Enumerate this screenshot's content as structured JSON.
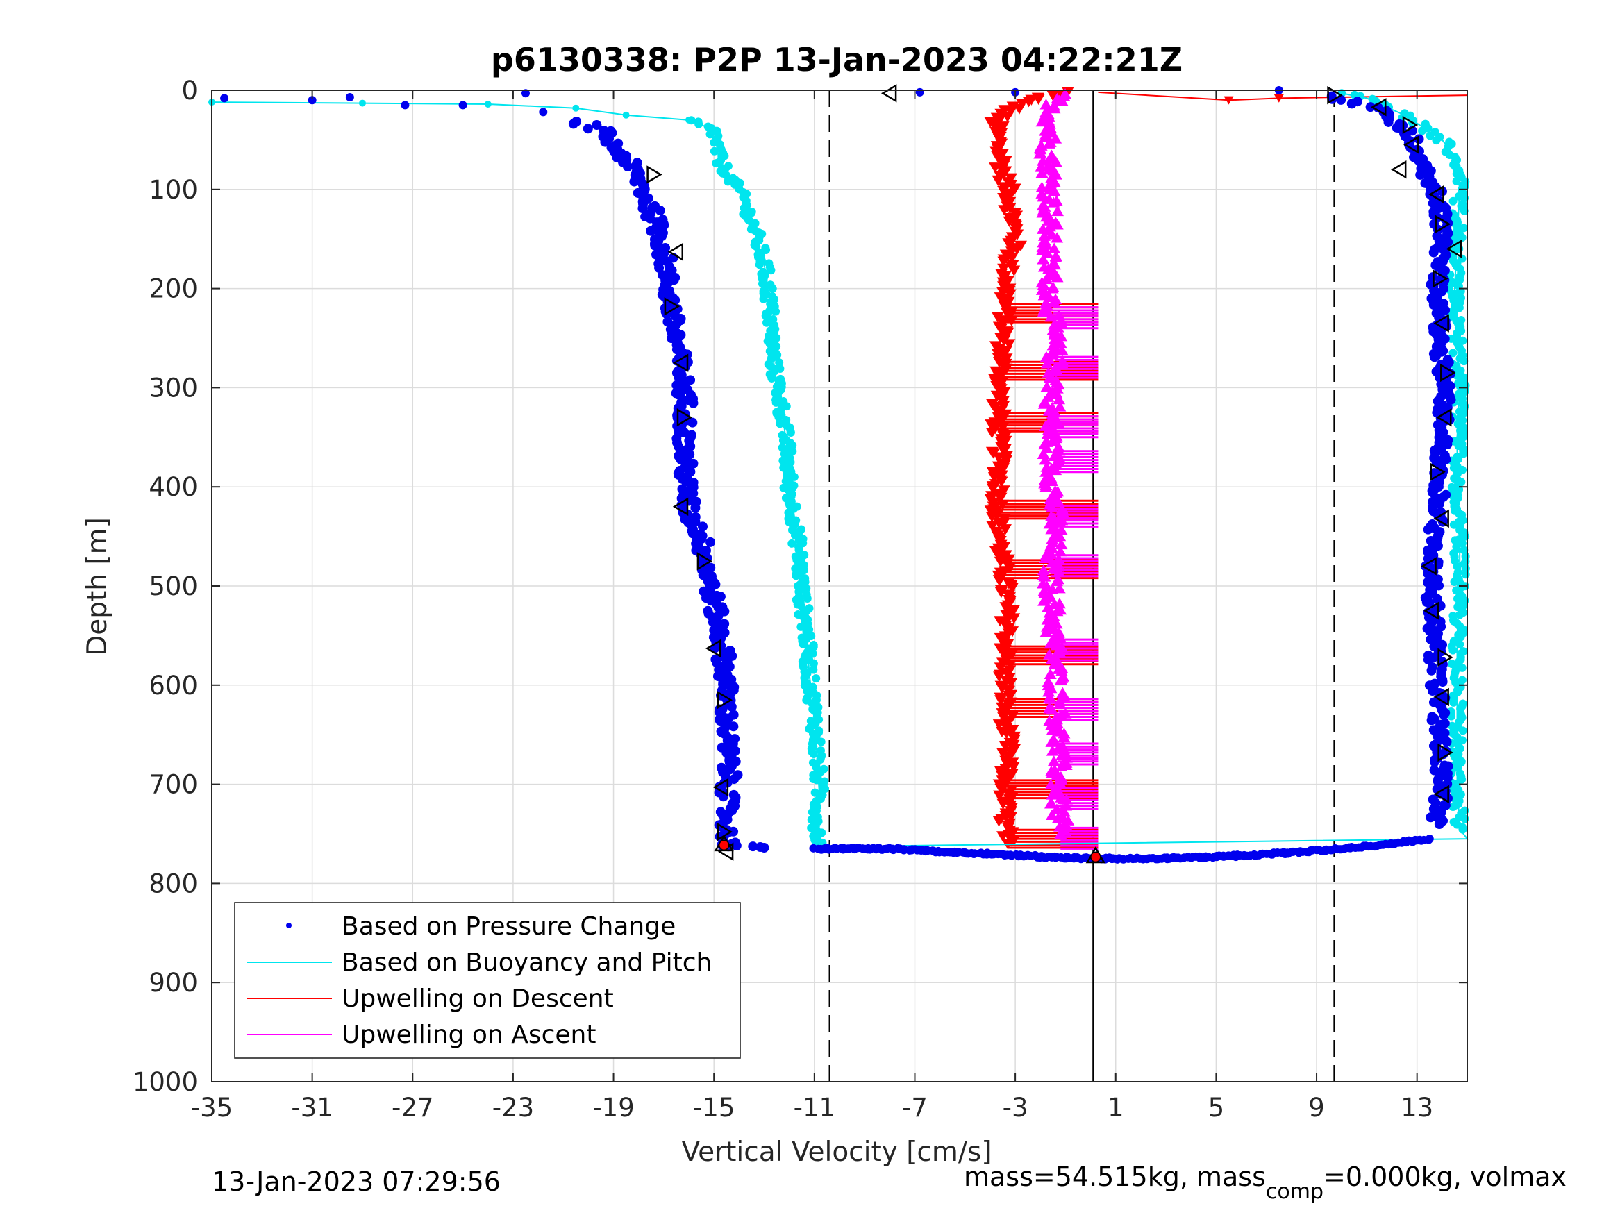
{
  "chart_data": {
    "type": "scatter",
    "title": "p6130338: P2P 13-Jan-2023 04:22:21Z",
    "xlabel": "Vertical Velocity [cm/s]",
    "ylabel": "Depth [m]",
    "xlim": [
      -35,
      15
    ],
    "ylim": [
      1000,
      0
    ],
    "y_reversed": true,
    "grid": true,
    "x_ticks": [
      -35,
      -31,
      -27,
      -23,
      -19,
      -15,
      -11,
      -7,
      -3,
      1,
      5,
      9,
      13
    ],
    "y_ticks": [
      0,
      100,
      200,
      300,
      400,
      500,
      600,
      700,
      800,
      900,
      1000
    ],
    "x_tick_labels": [
      "-35",
      "-31",
      "-27",
      "-23",
      "-19",
      "-15",
      "-11",
      "-7",
      "-3",
      "1",
      "5",
      "9",
      "13"
    ],
    "y_tick_labels": [
      "0",
      "100",
      "200",
      "300",
      "400",
      "500",
      "600",
      "700",
      "800",
      "900",
      "1000"
    ],
    "legend_position": "bottom-left",
    "reference_lines": [
      {
        "style": "dashed",
        "x": -10.4
      },
      {
        "style": "dashed",
        "x": 9.7
      },
      {
        "style": "solid",
        "x": 0.1
      }
    ],
    "series": [
      {
        "name": "Based on Pressure Change",
        "marker": "dot",
        "color": "#0000ee",
        "descent": [
          {
            "x": -34.5,
            "y": 8
          },
          {
            "x": -31.0,
            "y": 10
          },
          {
            "x": -29.5,
            "y": 7
          },
          {
            "x": -27.3,
            "y": 15
          },
          {
            "x": -25.0,
            "y": 15
          },
          {
            "x": -22.5,
            "y": 3
          },
          {
            "x": -21.8,
            "y": 22
          },
          {
            "x": -20.5,
            "y": 32
          },
          {
            "x": -19.5,
            "y": 40
          },
          {
            "x": -19.0,
            "y": 55
          },
          {
            "x": -18.5,
            "y": 70
          },
          {
            "x": -18.0,
            "y": 90
          },
          {
            "x": -17.5,
            "y": 120
          },
          {
            "x": -17.0,
            "y": 160
          },
          {
            "x": -16.8,
            "y": 200
          },
          {
            "x": -16.6,
            "y": 240
          },
          {
            "x": -16.3,
            "y": 280
          },
          {
            "x": -16.1,
            "y": 320
          },
          {
            "x": -16.2,
            "y": 360
          },
          {
            "x": -16.1,
            "y": 400
          },
          {
            "x": -16.0,
            "y": 425
          },
          {
            "x": -15.5,
            "y": 450
          },
          {
            "x": -15.2,
            "y": 490
          },
          {
            "x": -14.9,
            "y": 530
          },
          {
            "x": -14.6,
            "y": 570
          },
          {
            "x": -14.5,
            "y": 610
          },
          {
            "x": -14.5,
            "y": 650
          },
          {
            "x": -14.4,
            "y": 690
          },
          {
            "x": -14.5,
            "y": 720
          },
          {
            "x": -14.5,
            "y": 745
          },
          {
            "x": -14.4,
            "y": 762
          },
          {
            "x": -13.0,
            "y": 764
          }
        ],
        "bottom_turn": [
          {
            "x": -11.0,
            "y": 765
          },
          {
            "x": -8.0,
            "y": 765
          },
          {
            "x": -6.0,
            "y": 768
          },
          {
            "x": -4.0,
            "y": 770
          },
          {
            "x": -2.0,
            "y": 773
          },
          {
            "x": 0.0,
            "y": 775
          },
          {
            "x": 2.2,
            "y": 775
          },
          {
            "x": 4.0,
            "y": 774
          },
          {
            "x": 6.0,
            "y": 772
          },
          {
            "x": 8.0,
            "y": 769
          },
          {
            "x": 10.0,
            "y": 765
          },
          {
            "x": 12.0,
            "y": 760
          },
          {
            "x": 13.5,
            "y": 755
          }
        ],
        "ascent": [
          {
            "x": 13.8,
            "y": 740
          },
          {
            "x": 14.0,
            "y": 700
          },
          {
            "x": 13.9,
            "y": 650
          },
          {
            "x": 13.8,
            "y": 600
          },
          {
            "x": 13.7,
            "y": 550
          },
          {
            "x": 13.6,
            "y": 500
          },
          {
            "x": 13.7,
            "y": 450
          },
          {
            "x": 13.9,
            "y": 400
          },
          {
            "x": 14.0,
            "y": 350
          },
          {
            "x": 14.1,
            "y": 300
          },
          {
            "x": 13.9,
            "y": 250
          },
          {
            "x": 13.8,
            "y": 200
          },
          {
            "x": 14.0,
            "y": 150
          },
          {
            "x": 13.9,
            "y": 110
          },
          {
            "x": 13.2,
            "y": 75
          },
          {
            "x": 12.8,
            "y": 45
          },
          {
            "x": 11.5,
            "y": 20
          },
          {
            "x": 9.6,
            "y": 6
          }
        ],
        "surface": [
          {
            "x": -6.8,
            "y": 2
          },
          {
            "x": -3.0,
            "y": 2
          },
          {
            "x": 7.5,
            "y": 0
          }
        ]
      },
      {
        "name": "Based on Buoyancy and Pitch",
        "marker": "line+dot",
        "color": "#00e5ee",
        "descent": [
          {
            "x": -35.0,
            "y": 12
          },
          {
            "x": -29.0,
            "y": 13
          },
          {
            "x": -24.0,
            "y": 14
          },
          {
            "x": -20.5,
            "y": 18
          },
          {
            "x": -18.5,
            "y": 25
          },
          {
            "x": -16.0,
            "y": 30
          },
          {
            "x": -15.0,
            "y": 40
          },
          {
            "x": -14.8,
            "y": 70
          },
          {
            "x": -14.3,
            "y": 90
          },
          {
            "x": -13.8,
            "y": 110
          },
          {
            "x": -13.4,
            "y": 140
          },
          {
            "x": -13.0,
            "y": 175
          },
          {
            "x": -12.8,
            "y": 210
          },
          {
            "x": -12.7,
            "y": 250
          },
          {
            "x": -12.6,
            "y": 280
          },
          {
            "x": -12.3,
            "y": 320
          },
          {
            "x": -12.1,
            "y": 360
          },
          {
            "x": -12.0,
            "y": 400
          },
          {
            "x": -11.8,
            "y": 430
          },
          {
            "x": -11.6,
            "y": 470
          },
          {
            "x": -11.5,
            "y": 510
          },
          {
            "x": -11.3,
            "y": 550
          },
          {
            "x": -11.2,
            "y": 590
          },
          {
            "x": -11.0,
            "y": 630
          },
          {
            "x": -10.9,
            "y": 670
          },
          {
            "x": -10.8,
            "y": 710
          },
          {
            "x": -10.9,
            "y": 740
          },
          {
            "x": -10.8,
            "y": 760
          }
        ],
        "bottom_turn": [
          {
            "x": -10.8,
            "y": 763
          },
          {
            "x": 15.0,
            "y": 755
          }
        ],
        "ascent": [
          {
            "x": 14.7,
            "y": 745
          },
          {
            "x": 14.6,
            "y": 700
          },
          {
            "x": 14.6,
            "y": 650
          },
          {
            "x": 14.6,
            "y": 600
          },
          {
            "x": 14.6,
            "y": 550
          },
          {
            "x": 14.7,
            "y": 500
          },
          {
            "x": 14.7,
            "y": 450
          },
          {
            "x": 14.6,
            "y": 400
          },
          {
            "x": 14.6,
            "y": 350
          },
          {
            "x": 14.7,
            "y": 300
          },
          {
            "x": 14.6,
            "y": 250
          },
          {
            "x": 14.5,
            "y": 200
          },
          {
            "x": 14.6,
            "y": 150
          },
          {
            "x": 14.7,
            "y": 100
          },
          {
            "x": 14.6,
            "y": 70
          },
          {
            "x": 14.0,
            "y": 50
          },
          {
            "x": 12.5,
            "y": 25
          },
          {
            "x": 11.0,
            "y": 8
          },
          {
            "x": 10.0,
            "y": 3
          }
        ]
      },
      {
        "name": "Upwelling on Descent",
        "marker": "triangle-down",
        "color": "#ff0000",
        "points": [
          {
            "x": -1.0,
            "y": 2
          },
          {
            "x": -2.5,
            "y": 10
          },
          {
            "x": -3.2,
            "y": 20
          },
          {
            "x": -3.8,
            "y": 30
          },
          {
            "x": -3.7,
            "y": 50
          },
          {
            "x": -3.5,
            "y": 80
          },
          {
            "x": -3.2,
            "y": 110
          },
          {
            "x": -3.0,
            "y": 150
          },
          {
            "x": -3.3,
            "y": 180
          },
          {
            "x": -3.4,
            "y": 220
          },
          {
            "x": -3.5,
            "y": 260
          },
          {
            "x": -3.6,
            "y": 300
          },
          {
            "x": -3.7,
            "y": 340
          },
          {
            "x": -3.6,
            "y": 380
          },
          {
            "x": -3.7,
            "y": 420
          },
          {
            "x": -3.6,
            "y": 460
          },
          {
            "x": -3.4,
            "y": 500
          },
          {
            "x": -3.3,
            "y": 540
          },
          {
            "x": -3.4,
            "y": 580
          },
          {
            "x": -3.4,
            "y": 620
          },
          {
            "x": -3.3,
            "y": 660
          },
          {
            "x": -3.4,
            "y": 700
          },
          {
            "x": -3.4,
            "y": 740
          },
          {
            "x": -3.3,
            "y": 760
          }
        ],
        "bands": [
          {
            "y": 225,
            "x_to": 0.3
          },
          {
            "y": 283,
            "x_to": 0.3
          },
          {
            "y": 335,
            "x_to": 0.3
          },
          {
            "y": 423,
            "x_to": 0.3
          },
          {
            "y": 483,
            "x_to": 0.3
          },
          {
            "y": 570,
            "x_to": 0.3
          },
          {
            "y": 623,
            "x_to": 0.3
          },
          {
            "y": 705,
            "x_to": 0.3
          },
          {
            "y": 755,
            "x_to": 0.3
          }
        ],
        "surface_trace": [
          {
            "x": 0.3,
            "y": 2
          },
          {
            "x": 5.5,
            "y": 10
          },
          {
            "x": 7.5,
            "y": 8
          },
          {
            "x": 15.0,
            "y": 5
          }
        ]
      },
      {
        "name": "Upwelling on Ascent",
        "marker": "triangle-up",
        "color": "#ff00ff",
        "points": [
          {
            "x": -1.3,
            "y": 3
          },
          {
            "x": -1.6,
            "y": 30
          },
          {
            "x": -1.7,
            "y": 60
          },
          {
            "x": -1.6,
            "y": 90
          },
          {
            "x": -1.6,
            "y": 120
          },
          {
            "x": -1.7,
            "y": 160
          },
          {
            "x": -1.6,
            "y": 200
          },
          {
            "x": -1.5,
            "y": 240
          },
          {
            "x": -1.4,
            "y": 290
          },
          {
            "x": -1.6,
            "y": 340
          },
          {
            "x": -1.5,
            "y": 390
          },
          {
            "x": -1.4,
            "y": 440
          },
          {
            "x": -1.6,
            "y": 480
          },
          {
            "x": -1.5,
            "y": 530
          },
          {
            "x": -1.4,
            "y": 580
          },
          {
            "x": -1.3,
            "y": 630
          },
          {
            "x": -1.3,
            "y": 680
          },
          {
            "x": -1.3,
            "y": 720
          },
          {
            "x": -1.2,
            "y": 750
          }
        ],
        "bands": [
          {
            "y": 230,
            "x_to": 0.3
          },
          {
            "y": 280,
            "x_to": 0.3
          },
          {
            "y": 340,
            "x_to": 0.3
          },
          {
            "y": 375,
            "x_to": 0.3
          },
          {
            "y": 430,
            "x_to": 0.3
          },
          {
            "y": 480,
            "x_to": 0.3
          },
          {
            "y": 565,
            "x_to": 0.3
          },
          {
            "y": 625,
            "x_to": 0.3
          },
          {
            "y": 670,
            "x_to": 0.3
          },
          {
            "y": 715,
            "x_to": 0.3
          },
          {
            "y": 755,
            "x_to": 0.3
          }
        ]
      }
    ],
    "pitch_markers": [
      {
        "x": -8.0,
        "y": 3,
        "dir": "left"
      },
      {
        "x": -17.4,
        "y": 85,
        "dir": "right"
      },
      {
        "x": -16.5,
        "y": 163,
        "dir": "left"
      },
      {
        "x": -16.7,
        "y": 218,
        "dir": "right"
      },
      {
        "x": -16.3,
        "y": 275,
        "dir": "left"
      },
      {
        "x": -16.2,
        "y": 330,
        "dir": "right"
      },
      {
        "x": -16.3,
        "y": 420,
        "dir": "left"
      },
      {
        "x": -15.4,
        "y": 475,
        "dir": "right"
      },
      {
        "x": -15.0,
        "y": 563,
        "dir": "left"
      },
      {
        "x": -14.6,
        "y": 615,
        "dir": "right"
      },
      {
        "x": -14.7,
        "y": 703,
        "dir": "left"
      },
      {
        "x": -14.6,
        "y": 748,
        "dir": "right"
      },
      {
        "x": -14.5,
        "y": 768,
        "dir": "left"
      },
      {
        "x": 9.7,
        "y": 5,
        "dir": "right"
      },
      {
        "x": 11.5,
        "y": 17,
        "dir": "left"
      },
      {
        "x": 12.7,
        "y": 35,
        "dir": "right"
      },
      {
        "x": 12.8,
        "y": 55,
        "dir": "left"
      },
      {
        "x": 12.3,
        "y": 80,
        "dir": "left"
      },
      {
        "x": 13.8,
        "y": 105,
        "dir": "left"
      },
      {
        "x": 14.0,
        "y": 135,
        "dir": "right"
      },
      {
        "x": 14.5,
        "y": 160,
        "dir": "left"
      },
      {
        "x": 13.9,
        "y": 190,
        "dir": "right"
      },
      {
        "x": 14.0,
        "y": 235,
        "dir": "left"
      },
      {
        "x": 14.2,
        "y": 285,
        "dir": "right"
      },
      {
        "x": 14.1,
        "y": 330,
        "dir": "left"
      },
      {
        "x": 13.8,
        "y": 385,
        "dir": "right"
      },
      {
        "x": 14.0,
        "y": 432,
        "dir": "left"
      },
      {
        "x": 13.5,
        "y": 480,
        "dir": "left"
      },
      {
        "x": 13.6,
        "y": 525,
        "dir": "left"
      },
      {
        "x": 14.1,
        "y": 572,
        "dir": "right"
      },
      {
        "x": 14.0,
        "y": 612,
        "dir": "left"
      },
      {
        "x": 14.1,
        "y": 668,
        "dir": "right"
      },
      {
        "x": 14.0,
        "y": 710,
        "dir": "left"
      }
    ],
    "bottom_markers": [
      {
        "x": -14.6,
        "y": 760,
        "color": "#ff0000"
      },
      {
        "x": 0.2,
        "y": 772,
        "color": "#ff0000"
      }
    ]
  },
  "legend": {
    "items": [
      {
        "label": "Based on Pressure Change",
        "style": "dot",
        "color": "#0000ee"
      },
      {
        "label": "Based on Buoyancy and Pitch",
        "style": "line",
        "color": "#00e5ee"
      },
      {
        "label": "Upwelling on Descent",
        "style": "line",
        "color": "#ff0000"
      },
      {
        "label": "Upwelling on Ascent",
        "style": "line",
        "color": "#ff00ff"
      }
    ]
  },
  "footer": {
    "left_text": "13-Jan-2023 07:29:56",
    "right_prefix": "mass=54.515kg, mass",
    "right_subscript": "comp",
    "right_suffix": "=0.000kg, volmax"
  }
}
